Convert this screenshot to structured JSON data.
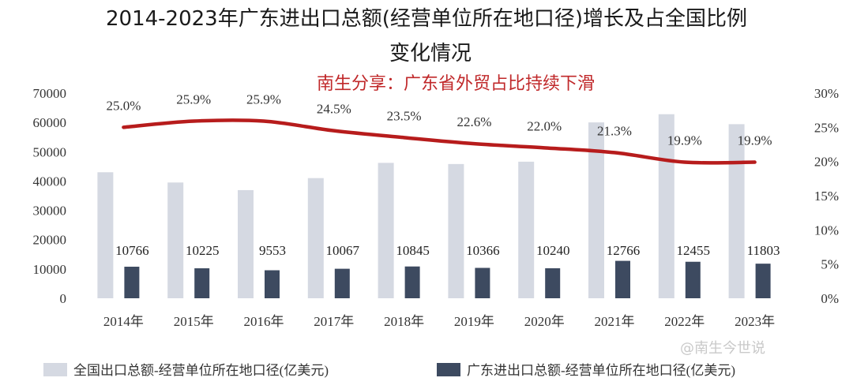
{
  "chart_data": {
    "type": "bar",
    "title": "2014-2023年广东进出口总额(经营单位所在地口径)增长及占全国比例",
    "title_line2": "变化情况",
    "subtitle": "南生分享：广东省外贸占比持续下滑",
    "categories": [
      "2014年",
      "2015年",
      "2016年",
      "2017年",
      "2018年",
      "2019年",
      "2020年",
      "2021年",
      "2022年",
      "2023年"
    ],
    "y_left": {
      "ylim": [
        0,
        70000
      ],
      "ticks": [
        "0",
        "10000",
        "20000",
        "30000",
        "40000",
        "50000",
        "60000",
        "70000"
      ]
    },
    "y_right": {
      "ylim": [
        0,
        30
      ],
      "ticks": [
        "0%",
        "5%",
        "10%",
        "15%",
        "20%",
        "25%",
        "30%"
      ]
    },
    "series": [
      {
        "name": "全国出口总额-经营单位所在地口径(亿美元)",
        "kind": "bar",
        "color": "#d5d9e2",
        "values": [
          43000,
          39500,
          36900,
          41000,
          46200,
          45800,
          46600,
          60000,
          62800,
          59400
        ]
      },
      {
        "name": "广东进出口总额-经营单位所在地口径(亿美元)",
        "kind": "bar",
        "color": "#3d4a60",
        "values": [
          10766,
          10225,
          9553,
          10067,
          10845,
          10366,
          10240,
          12766,
          12455,
          11803
        ],
        "labels": [
          "10766",
          "10225",
          "9553",
          "10067",
          "10845",
          "10366",
          "10240",
          "12766",
          "12455",
          "11803"
        ]
      },
      {
        "kind": "line",
        "axis": "right",
        "color": "#b71c1c",
        "values": [
          25.0,
          25.9,
          25.9,
          24.5,
          23.5,
          22.6,
          22.0,
          21.3,
          19.9,
          19.9
        ],
        "labels": [
          "25.0%",
          "25.9%",
          "25.9%",
          "24.5%",
          "23.5%",
          "22.6%",
          "22.0%",
          "21.3%",
          "19.9%",
          "19.9%"
        ]
      }
    ],
    "watermark": "@南生今世说"
  }
}
